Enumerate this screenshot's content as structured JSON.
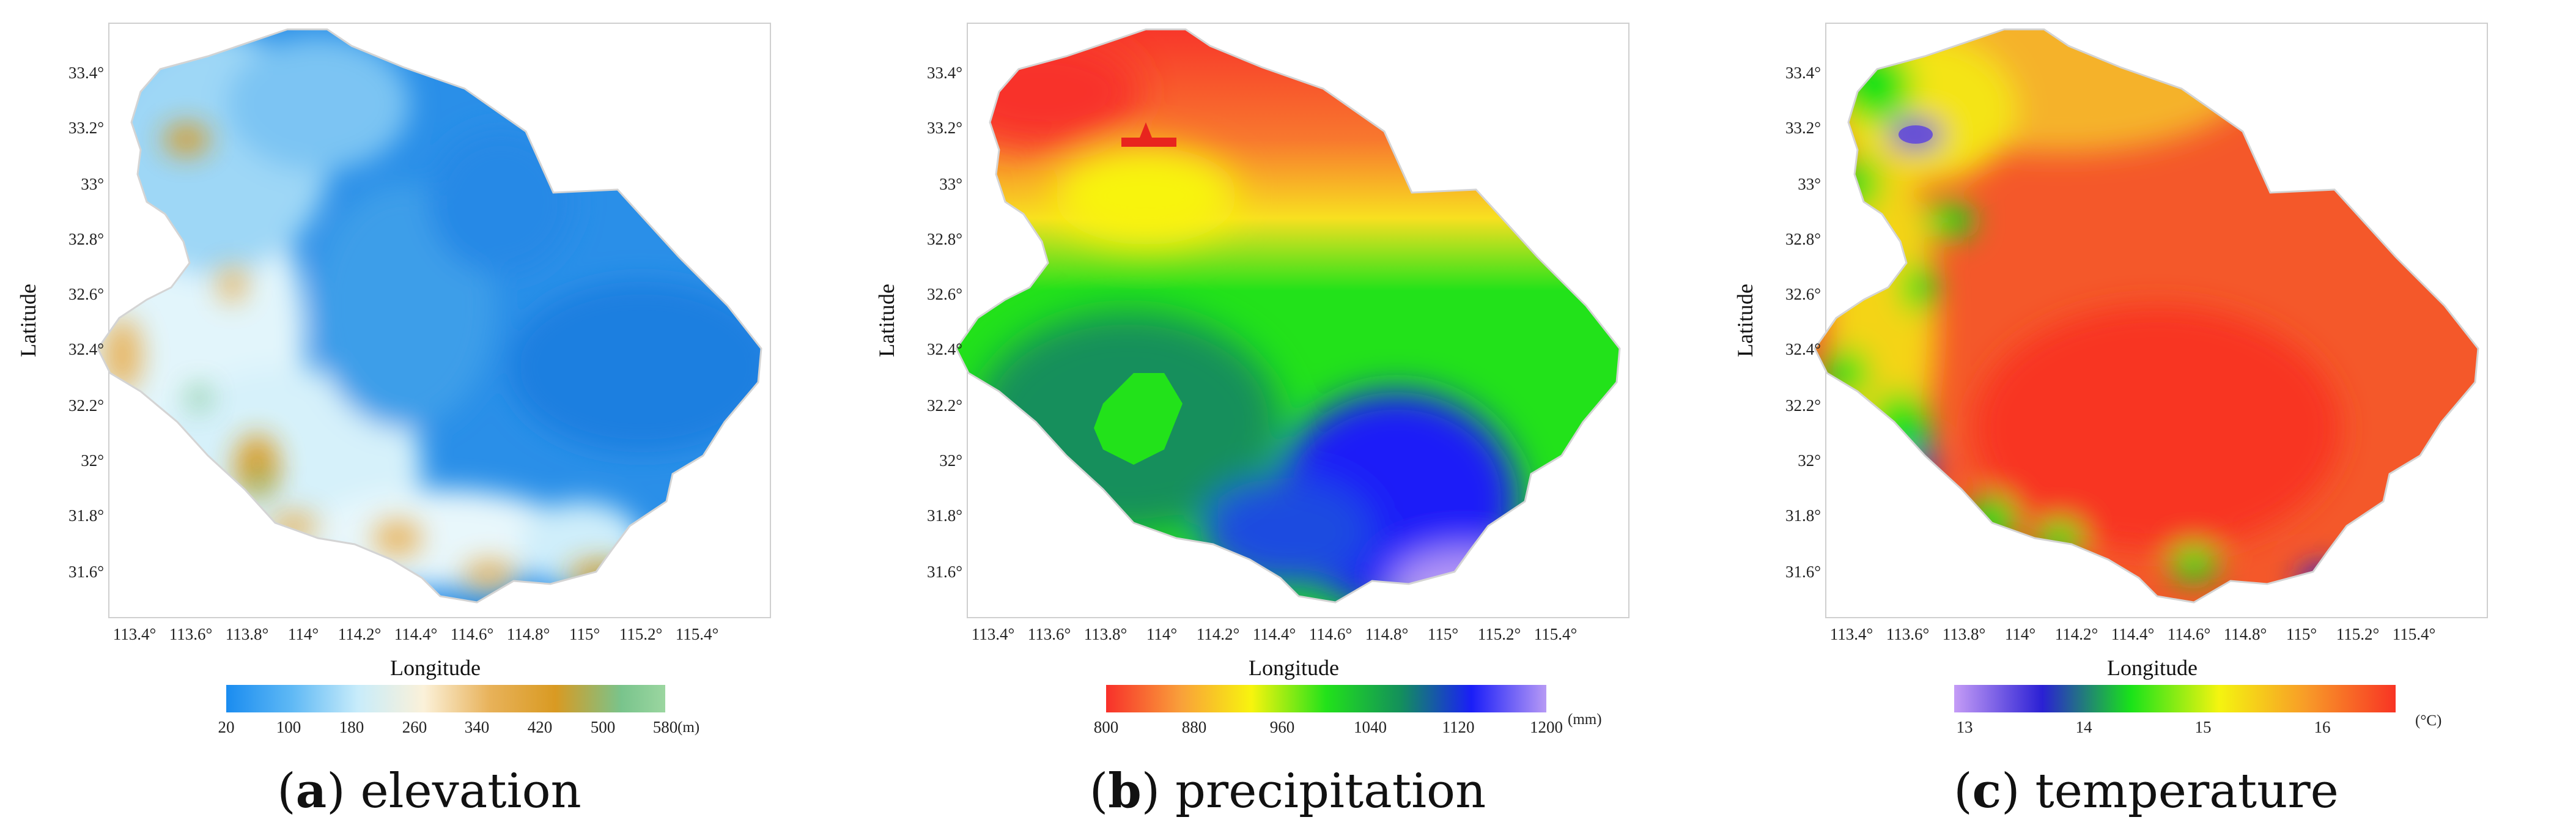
{
  "axes": {
    "xlabel": "Longitude",
    "ylabel": "Latitude",
    "xticks": [
      "113.4°",
      "113.6°",
      "113.8°",
      "114°",
      "114.2°",
      "114.4°",
      "114.6°",
      "114.8°",
      "115°",
      "115.2°",
      "115.4°"
    ],
    "yticks": [
      "33.4°",
      "33.2°",
      "33°",
      "32.8°",
      "32.6°",
      "32.4°",
      "32.2°",
      "32°",
      "31.8°",
      "31.6°"
    ]
  },
  "panels": [
    {
      "letter": "a",
      "caption": "elevation",
      "legend_ticks": [
        "20",
        "100",
        "180",
        "260",
        "340",
        "420",
        "500",
        "580"
      ],
      "unit": "(m)",
      "colors": [
        "#1a8cf0",
        "#5fb9f5",
        "#c8ecfa",
        "#fbf1d9",
        "#e8b25a",
        "#d99a22",
        "#79c48c",
        "#9bd6a0"
      ]
    },
    {
      "letter": "b",
      "caption": "precipitation",
      "legend_ticks": [
        "800",
        "880",
        "960",
        "1040",
        "1120",
        "1200"
      ],
      "unit": "(mm)",
      "colors": [
        "#f8302a",
        "#f9a03a",
        "#f8f40e",
        "#22e21a",
        "#138f5c",
        "#1a1ef8",
        "#b79af5"
      ]
    },
    {
      "letter": "c",
      "caption": "temperature",
      "legend_ticks": [
        "13",
        "14",
        "15",
        "16"
      ],
      "unit": "(°C)",
      "colors": [
        "#c59cf6",
        "#2a20d4",
        "#19e319",
        "#f4f410",
        "#f89a28",
        "#f83424"
      ]
    }
  ],
  "chart_data": [
    {
      "type": "heatmap",
      "title": "",
      "xlabel": "Longitude",
      "ylabel": "Latitude",
      "xlim": [
        113.3,
        115.55
      ],
      "ylim": [
        31.5,
        33.5
      ],
      "colorbar_range": [
        20,
        580
      ],
      "colorbar_unit": "(m)",
      "variable": "elevation"
    },
    {
      "type": "heatmap",
      "title": "",
      "xlabel": "Longitude",
      "ylabel": "Latitude",
      "xlim": [
        113.3,
        115.55
      ],
      "ylim": [
        31.5,
        33.5
      ],
      "colorbar_range": [
        800,
        1200
      ],
      "colorbar_unit": "(mm)",
      "variable": "precipitation"
    },
    {
      "type": "heatmap",
      "title": "",
      "xlabel": "Longitude",
      "ylabel": "Latitude",
      "xlim": [
        113.3,
        115.55
      ],
      "ylim": [
        31.5,
        33.5
      ],
      "colorbar_range": [
        13,
        16.6
      ],
      "colorbar_unit": "(°C)",
      "variable": "temperature"
    }
  ]
}
